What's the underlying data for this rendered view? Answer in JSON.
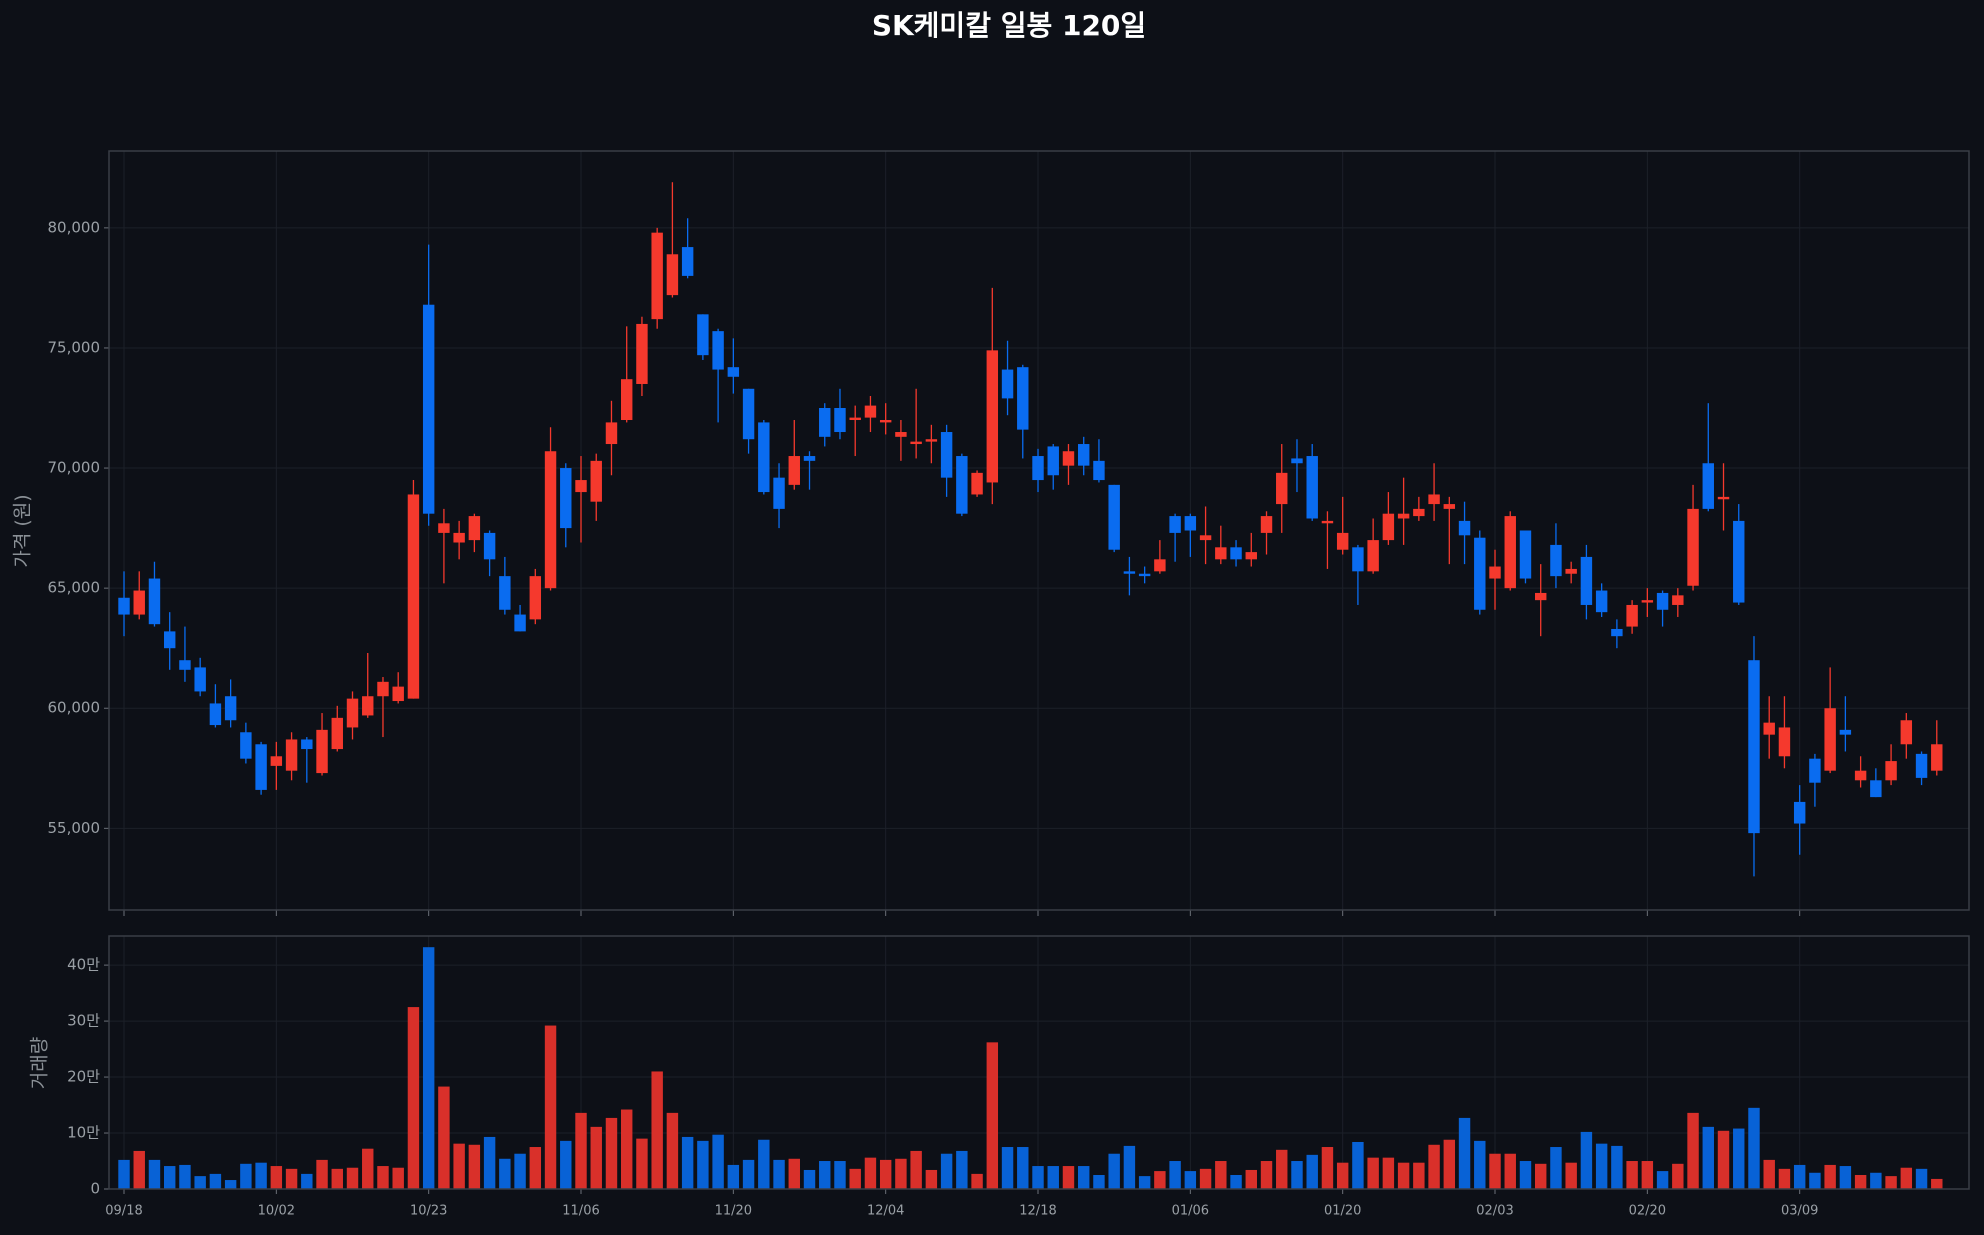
{
  "chart_data": [
    {
      "type": "candlestick",
      "title": "SK케미칼 일봉 120일",
      "ylabel": "가격 (원)",
      "categories": [
        "09/18",
        null,
        null,
        null,
        null,
        null,
        null,
        null,
        null,
        null,
        "10/02",
        null,
        null,
        null,
        null,
        null,
        null,
        null,
        null,
        null,
        "10/23",
        null,
        null,
        null,
        null,
        null,
        null,
        null,
        null,
        null,
        "11/06",
        null,
        null,
        null,
        null,
        null,
        null,
        null,
        null,
        null,
        "11/20",
        null,
        null,
        null,
        null,
        null,
        null,
        null,
        null,
        null,
        "12/04",
        null,
        null,
        null,
        null,
        null,
        null,
        null,
        null,
        null,
        "12/18",
        null,
        null,
        null,
        null,
        null,
        null,
        null,
        null,
        null,
        "01/06",
        null,
        null,
        null,
        null,
        null,
        null,
        null,
        null,
        null,
        "01/20",
        null,
        null,
        null,
        null,
        null,
        null,
        null,
        null,
        null,
        "02/03",
        null,
        null,
        null,
        null,
        null,
        null,
        null,
        null,
        null,
        "02/20",
        null,
        null,
        null,
        null,
        null,
        null,
        null,
        null,
        null,
        "03/09",
        null,
        null,
        null,
        null,
        null,
        null,
        null,
        null,
        null
      ],
      "open": [
        64600,
        63900,
        65400,
        63200,
        62000,
        61700,
        60200,
        60500,
        59000,
        58500,
        57600,
        57400,
        58700,
        57300,
        58300,
        59200,
        59700,
        60500,
        60300,
        60400,
        76800,
        67300,
        66900,
        67000,
        67300,
        65500,
        63900,
        63700,
        65000,
        70000,
        69000,
        68600,
        71000,
        72000,
        73500,
        76200,
        77200,
        79200,
        76400,
        75700,
        74200,
        73300,
        71900,
        69600,
        69300,
        70500,
        72500,
        72500,
        72000,
        72100,
        71900,
        71300,
        71000,
        71100,
        71500,
        70500,
        68900,
        69400,
        74100,
        74200,
        70500,
        70900,
        70100,
        71000,
        70300,
        69300,
        65700,
        65600,
        65700,
        68000,
        68000,
        67000,
        66200,
        66700,
        66200,
        67300,
        68500,
        70400,
        70500,
        67700,
        66600,
        66700,
        65700,
        67000,
        67900,
        68000,
        68500,
        68300,
        67800,
        67100,
        65400,
        65000,
        67400,
        64500,
        66800,
        65600,
        66300,
        64900,
        63300,
        63400,
        64400,
        64800,
        64300,
        65100,
        70200,
        68700,
        67800,
        62000,
        58900,
        58000,
        56100,
        57900,
        57400,
        59100,
        57000,
        57000,
        57000,
        58500,
        58100,
        57400
      ],
      "high": [
        65700,
        65700,
        66100,
        64000,
        63400,
        62100,
        61000,
        61200,
        59400,
        58600,
        58600,
        59000,
        58800,
        59800,
        60100,
        60700,
        62300,
        61300,
        61500,
        69500,
        79300,
        68300,
        67800,
        68100,
        67400,
        66300,
        64300,
        65800,
        71700,
        70200,
        70500,
        70600,
        72800,
        75900,
        76300,
        80000,
        81900,
        80400,
        76400,
        75800,
        75400,
        73300,
        72000,
        70200,
        72000,
        70700,
        72700,
        73300,
        72600,
        73000,
        72700,
        72000,
        73300,
        71800,
        71800,
        70600,
        69900,
        77500,
        75300,
        74300,
        70800,
        71000,
        71000,
        71300,
        71200,
        69300,
        66300,
        65900,
        67000,
        68100,
        68100,
        68400,
        67600,
        67000,
        67300,
        68200,
        71000,
        71200,
        71000,
        68200,
        68800,
        66800,
        67900,
        69000,
        69600,
        68800,
        70200,
        68800,
        68600,
        67400,
        66600,
        68200,
        67400,
        66000,
        67700,
        66100,
        66800,
        65200,
        63700,
        64500,
        65000,
        64900,
        65000,
        69300,
        72700,
        70200,
        68500,
        63000,
        60500,
        60500,
        56800,
        58100,
        61700,
        60500,
        58000,
        57500,
        58500,
        59800,
        58200,
        59500
      ],
      "low": [
        63000,
        63700,
        63400,
        61600,
        61100,
        60500,
        59200,
        59200,
        57700,
        56400,
        56600,
        57000,
        56900,
        57200,
        58200,
        58700,
        59600,
        58800,
        60200,
        60400,
        67600,
        65200,
        66200,
        66500,
        65500,
        63900,
        63200,
        63500,
        64900,
        66700,
        66900,
        67800,
        69700,
        71900,
        73000,
        75800,
        77100,
        77900,
        74500,
        71900,
        73100,
        70600,
        68900,
        67500,
        69100,
        69100,
        70900,
        71200,
        70500,
        71500,
        71400,
        70300,
        70400,
        70200,
        68800,
        68000,
        68800,
        68500,
        72200,
        70400,
        69000,
        69100,
        69300,
        69700,
        69400,
        66500,
        64700,
        65200,
        65600,
        66100,
        66300,
        66000,
        66000,
        65900,
        65900,
        66400,
        67300,
        69000,
        67800,
        65800,
        66400,
        64300,
        65600,
        66800,
        66800,
        67800,
        67800,
        66000,
        66000,
        63900,
        64100,
        64900,
        65200,
        63000,
        65000,
        65200,
        63700,
        63800,
        62500,
        63100,
        63800,
        63400,
        63800,
        64900,
        68200,
        67400,
        64300,
        53000,
        57900,
        57500,
        53900,
        55900,
        57300,
        58200,
        56700,
        56300,
        56800,
        57900,
        56800,
        57200
      ],
      "close": [
        63900,
        64900,
        63500,
        62500,
        61600,
        60700,
        59300,
        59500,
        57900,
        56600,
        58000,
        58700,
        58300,
        59100,
        59600,
        60400,
        60500,
        61100,
        60900,
        68900,
        68100,
        67700,
        67300,
        68000,
        66200,
        64100,
        63200,
        65500,
        70700,
        67500,
        69500,
        70300,
        71900,
        73700,
        76000,
        79800,
        78900,
        78000,
        74700,
        74100,
        73800,
        71200,
        69000,
        68300,
        70500,
        70300,
        71300,
        71500,
        72100,
        72600,
        72000,
        71500,
        71100,
        71200,
        69600,
        68100,
        69800,
        74900,
        72900,
        71600,
        69500,
        69700,
        70700,
        70100,
        69500,
        66600,
        65600,
        65500,
        66200,
        67300,
        67400,
        67200,
        66700,
        66200,
        66500,
        68000,
        69800,
        70200,
        67900,
        67800,
        67300,
        65700,
        67000,
        68100,
        68100,
        68300,
        68900,
        68500,
        67200,
        64100,
        65900,
        68000,
        65400,
        64800,
        65500,
        65800,
        64300,
        64000,
        63000,
        64300,
        64500,
        64100,
        64700,
        68300,
        68300,
        68800,
        64400,
        54800,
        59400,
        59200,
        55200,
        56900,
        60000,
        58900,
        57400,
        56300,
        57800,
        59500,
        57100,
        58500
      ],
      "up_color": "#f5392d",
      "down_color": "#0a6cf0",
      "ylim": [
        51600,
        83200
      ],
      "yticks": [
        {
          "value": 55000,
          "label": "55,000"
        },
        {
          "value": 60000,
          "label": "60,000"
        },
        {
          "value": 65000,
          "label": "65,000"
        },
        {
          "value": 70000,
          "label": "70,000"
        },
        {
          "value": 75000,
          "label": "75,000"
        },
        {
          "value": 80000,
          "label": "80,000"
        }
      ],
      "grid": true
    },
    {
      "type": "bar",
      "ylabel": "거래량",
      "values": [
        52000,
        68000,
        52000,
        41000,
        43000,
        23000,
        27000,
        16000,
        45000,
        47000,
        41000,
        36000,
        27000,
        52000,
        36000,
        38000,
        72000,
        41000,
        38000,
        325000,
        432000,
        183000,
        81000,
        79000,
        93000,
        54000,
        63000,
        75000,
        292000,
        86000,
        136000,
        111000,
        127000,
        142000,
        90000,
        210000,
        136000,
        93000,
        86000,
        97000,
        43000,
        52000,
        88000,
        52000,
        54000,
        34000,
        50000,
        50000,
        36000,
        56000,
        52000,
        54000,
        68000,
        34000,
        63000,
        68000,
        27000,
        262000,
        75000,
        75000,
        41000,
        41000,
        41000,
        41000,
        25000,
        63000,
        77000,
        23000,
        32000,
        50000,
        32000,
        36000,
        50000,
        25000,
        34000,
        50000,
        70000,
        50000,
        61000,
        75000,
        47000,
        84000,
        56000,
        56000,
        47000,
        47000,
        79000,
        88000,
        127000,
        86000,
        63000,
        63000,
        50000,
        45000,
        75000,
        47000,
        102000,
        81000,
        77000,
        50000,
        50000,
        32000,
        45000,
        136000,
        111000,
        104000,
        108000,
        145000,
        52000,
        36000,
        43000,
        29000,
        43000,
        41000,
        25000,
        29000,
        23000,
        38000,
        36000,
        18000
      ],
      "up_color": "#d9302a",
      "down_color": "#0862d6",
      "ylim": [
        0,
        452000
      ],
      "yticks": [
        0,
        {
          "value": 100000,
          "label": "10만"
        },
        {
          "value": 200000,
          "label": "20만"
        },
        {
          "value": 300000,
          "label": "30만"
        },
        {
          "value": 400000,
          "label": "40만"
        }
      ],
      "grid": true
    }
  ]
}
